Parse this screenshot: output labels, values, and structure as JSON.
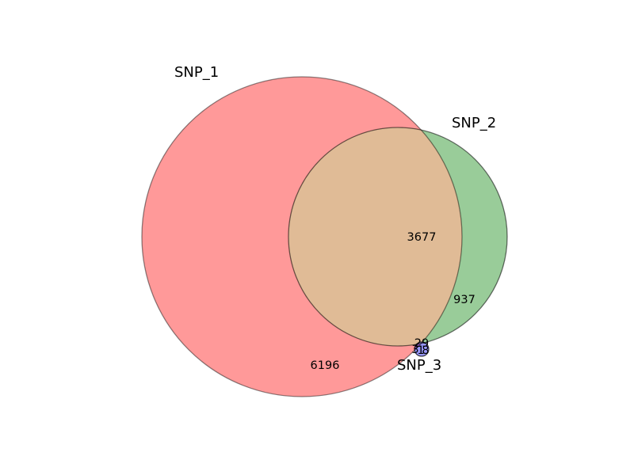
{
  "chart_data": {
    "type": "venn",
    "sets": [
      {
        "name": "SNP_1",
        "color": "#ff0000",
        "opacity": 0.4
      },
      {
        "name": "SNP_2",
        "color": "#008000",
        "opacity": 0.4
      },
      {
        "name": "SNP_3",
        "color": "#0000ff",
        "opacity": 0.4
      }
    ],
    "regions": [
      {
        "sets": [
          "SNP_1"
        ],
        "value": "6196"
      },
      {
        "sets": [
          "SNP_2"
        ],
        "value": "937"
      },
      {
        "sets": [
          "SNP_1",
          "SNP_2"
        ],
        "value": "3677"
      },
      {
        "sets": [
          "SNP_3"
        ],
        "value": "8"
      },
      {
        "sets": [
          "SNP_1",
          "SNP_3"
        ],
        "value": "3"
      },
      {
        "sets": [
          "SNP_2",
          "SNP_3"
        ],
        "value": "1"
      },
      {
        "sets": [
          "SNP_1",
          "SNP_2",
          "SNP_3"
        ],
        "value": "29"
      }
    ],
    "overlap_colors": {
      "SNP_1_SNP_2": "#e0bb96"
    }
  }
}
